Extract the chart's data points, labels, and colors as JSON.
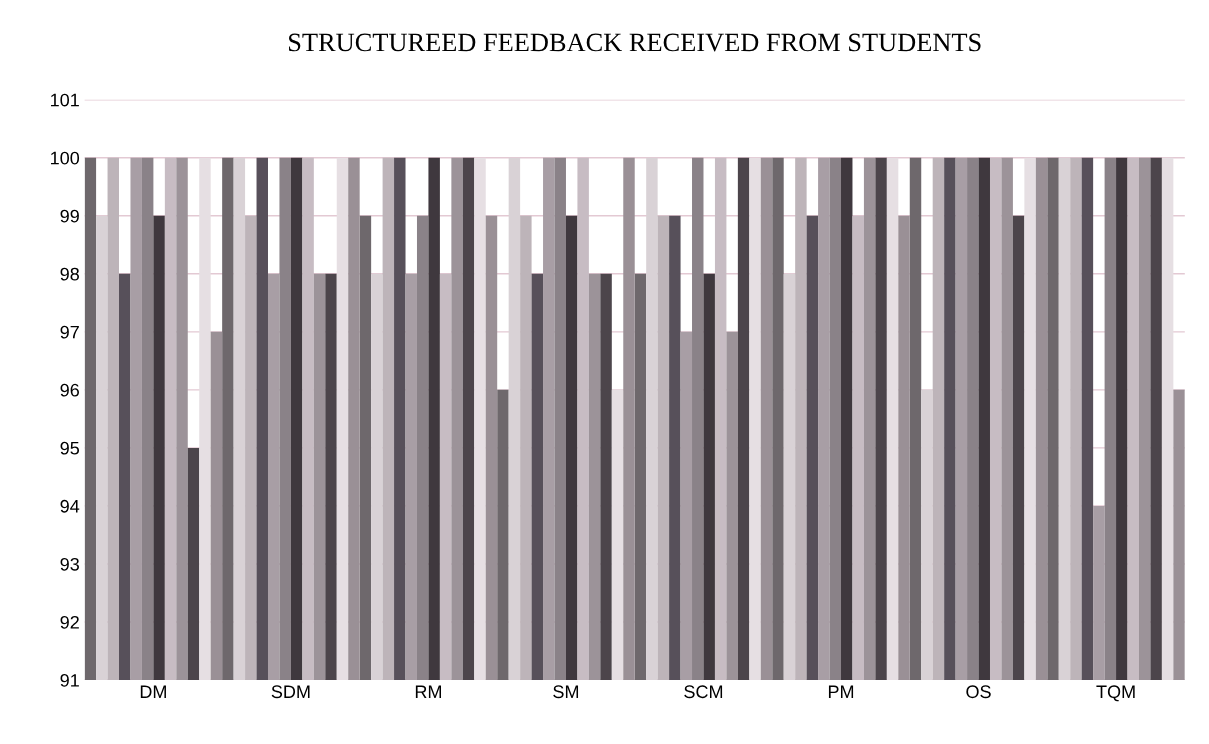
{
  "chart_data": {
    "type": "bar",
    "title": "STRUCTUREED FEEDBACK RECEIVED FROM STUDENTS",
    "categories": [
      "DM",
      "SDM",
      "RM",
      "SM",
      "SCM",
      "PM",
      "OS",
      "TQM"
    ],
    "series": [
      {
        "color": "#6e686c",
        "values": [
          100,
          100,
          99,
          96,
          98,
          100,
          100,
          100
        ]
      },
      {
        "color": "#d9d2d6",
        "values": [
          99,
          100,
          98,
          100,
          100,
          98,
          96,
          100
        ]
      },
      {
        "color": "#bdb4b9",
        "values": [
          100,
          99,
          100,
          99,
          99,
          100,
          100,
          100
        ]
      },
      {
        "color": "#57505a",
        "values": [
          98,
          100,
          100,
          98,
          99,
          99,
          100,
          100
        ]
      },
      {
        "color": "#a89ea5",
        "values": [
          100,
          98,
          98,
          100,
          97,
          100,
          100,
          94
        ]
      },
      {
        "color": "#8a8288",
        "values": [
          100,
          100,
          99,
          100,
          100,
          100,
          100,
          100
        ]
      },
      {
        "color": "#3f383e",
        "values": [
          99,
          100,
          100,
          99,
          98,
          100,
          100,
          100
        ]
      },
      {
        "color": "#c7bcc3",
        "values": [
          100,
          100,
          98,
          100,
          100,
          99,
          100,
          100
        ]
      },
      {
        "color": "#9c9399",
        "values": [
          100,
          98,
          100,
          98,
          97,
          100,
          100,
          100
        ]
      },
      {
        "color": "#4c454b",
        "values": [
          95,
          98,
          100,
          98,
          100,
          100,
          99,
          100
        ]
      },
      {
        "color": "#e6dfe3",
        "values": [
          100,
          100,
          100,
          96,
          100,
          100,
          100,
          100
        ]
      },
      {
        "color": "#9a9096",
        "values": [
          97,
          100,
          99,
          100,
          100,
          99,
          100,
          96
        ]
      }
    ],
    "ylim": [
      91,
      101
    ],
    "yticks": [
      91,
      92,
      93,
      94,
      95,
      96,
      97,
      98,
      99,
      100,
      101
    ],
    "grid": "y"
  }
}
